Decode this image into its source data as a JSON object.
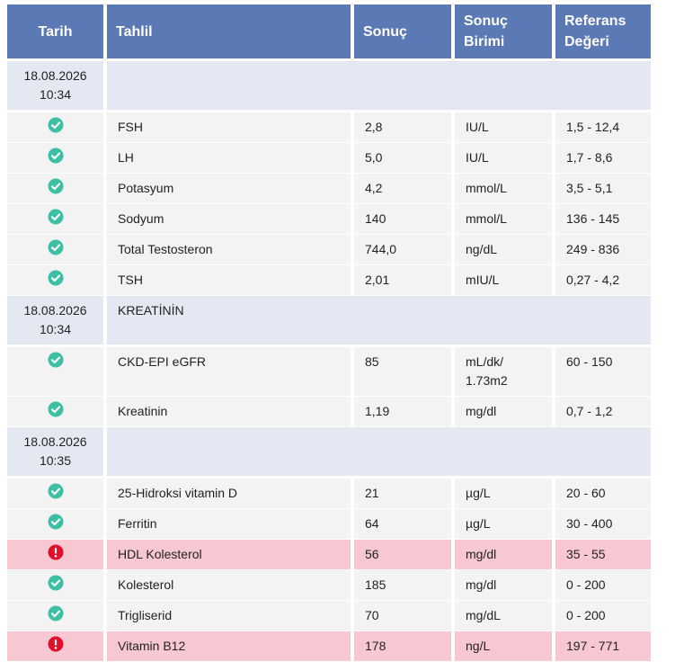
{
  "colors": {
    "header": "#5b79b4",
    "group_bg": "#e4e8f3",
    "row_bg": "#f3f3f3",
    "abnormal_bg": "#f8c8d2",
    "ok_icon": "#3dbfa3",
    "alert_icon": "#e0102a"
  },
  "header": {
    "date": "Tarih",
    "test": "Tahlil",
    "result": "Sonuç",
    "unit_lines": [
      "Sonuç",
      "Birimi"
    ],
    "ref_lines": [
      "Referans",
      "Değeri"
    ]
  },
  "groups": [
    {
      "date": "18.08.2026",
      "time": "10:34",
      "name": "",
      "rows": [
        {
          "status": "ok",
          "icon": "check-circle-icon",
          "test": "FSH",
          "result": "2,8",
          "unit": [
            "IU/L"
          ],
          "ref": "1,5 - 12,4"
        },
        {
          "status": "ok",
          "icon": "check-circle-icon",
          "test": "LH",
          "result": "5,0",
          "unit": [
            "IU/L"
          ],
          "ref": "1,7 - 8,6"
        },
        {
          "status": "ok",
          "icon": "check-circle-icon",
          "test": "Potasyum",
          "result": "4,2",
          "unit": [
            "mmol/L"
          ],
          "ref": "3,5 - 5,1"
        },
        {
          "status": "ok",
          "icon": "check-circle-icon",
          "test": "Sodyum",
          "result": "140",
          "unit": [
            "mmol/L"
          ],
          "ref": "136 - 145"
        },
        {
          "status": "ok",
          "icon": "check-circle-icon",
          "test": "Total Testosteron",
          "result": "744,0",
          "unit": [
            "ng/dL"
          ],
          "ref": "249 - 836"
        },
        {
          "status": "ok",
          "icon": "check-circle-icon",
          "test": "TSH",
          "result": "2,01",
          "unit": [
            "mIU/L"
          ],
          "ref": "0,27 - 4,2"
        }
      ]
    },
    {
      "date": "18.08.2026",
      "time": "10:34",
      "name": "KREATİNİN",
      "rows": [
        {
          "status": "ok",
          "icon": "check-circle-icon",
          "test": "CKD-EPI eGFR",
          "result": "85",
          "unit": [
            "mL/dk/",
            "1.73m2"
          ],
          "ref": "60 - 150"
        },
        {
          "status": "ok",
          "icon": "check-circle-icon",
          "test": "Kreatinin",
          "result": "1,19",
          "unit": [
            "mg/dl"
          ],
          "ref": "0,7 - 1,2"
        }
      ]
    },
    {
      "date": "18.08.2026",
      "time": "10:35",
      "name": "",
      "rows": [
        {
          "status": "ok",
          "icon": "check-circle-icon",
          "test": "25-Hidroksi vitamin D",
          "result": "21",
          "unit": [
            "µg/L"
          ],
          "ref": "20 - 60"
        },
        {
          "status": "ok",
          "icon": "check-circle-icon",
          "test": "Ferritin",
          "result": "64",
          "unit": [
            "µg/L"
          ],
          "ref": "30 - 400"
        },
        {
          "status": "bad",
          "icon": "alert-circle-icon",
          "test": "HDL Kolesterol",
          "result": "56",
          "unit": [
            "mg/dl"
          ],
          "ref": "35 - 55"
        },
        {
          "status": "ok",
          "icon": "check-circle-icon",
          "test": "Kolesterol",
          "result": "185",
          "unit": [
            "mg/dl"
          ],
          "ref": "0 - 200"
        },
        {
          "status": "ok",
          "icon": "check-circle-icon",
          "test": "Trigliserid",
          "result": "70",
          "unit": [
            "mg/dL"
          ],
          "ref": "0 - 200"
        },
        {
          "status": "bad",
          "icon": "alert-circle-icon",
          "test": "Vitamin B12",
          "result": "178",
          "unit": [
            "ng/L"
          ],
          "ref": "197 - 771"
        }
      ]
    }
  ]
}
